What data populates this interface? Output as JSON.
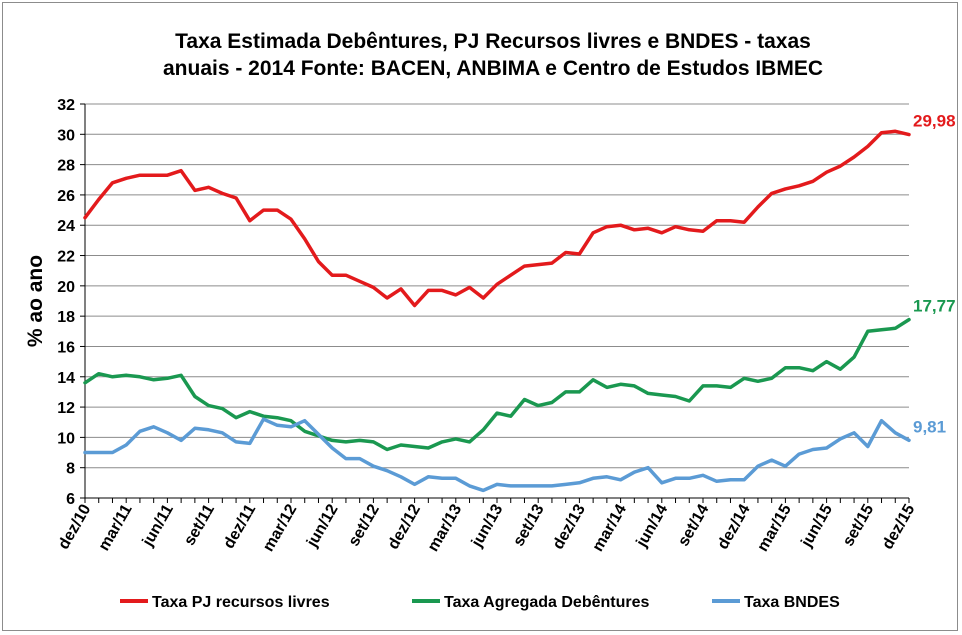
{
  "chart_data": {
    "type": "line",
    "title": [
      "Taxa Estimada Debêntures, PJ Recursos livres e BNDES - taxas",
      "anuais - 2014 Fonte: BACEN, ANBIMA e Centro de Estudos IBMEC"
    ],
    "ylabel": "% ao ano",
    "xlabel": "",
    "ylim": [
      6,
      32
    ],
    "yticks": [
      6,
      8,
      10,
      12,
      14,
      16,
      18,
      20,
      22,
      24,
      26,
      28,
      30,
      32
    ],
    "grid": "horizontal",
    "legend_position": "bottom",
    "x_tick_labels": [
      "dez/10",
      "mar/11",
      "jun/11",
      "set/11",
      "dez/11",
      "mar/12",
      "jun/12",
      "set/12",
      "dez/12",
      "mar/13",
      "jun/13",
      "set/13",
      "dez/13",
      "mar/14",
      "jun/14",
      "set/14",
      "dez/14",
      "mar/15",
      "jun/15",
      "set/15",
      "dez/15"
    ],
    "x": [
      "dez/10",
      "jan/11",
      "fev/11",
      "mar/11",
      "abr/11",
      "mai/11",
      "jun/11",
      "jul/11",
      "ago/11",
      "set/11",
      "out/11",
      "nov/11",
      "dez/11",
      "jan/12",
      "fev/12",
      "mar/12",
      "abr/12",
      "mai/12",
      "jun/12",
      "jul/12",
      "ago/12",
      "set/12",
      "out/12",
      "nov/12",
      "dez/12",
      "jan/13",
      "fev/13",
      "mar/13",
      "abr/13",
      "mai/13",
      "jun/13",
      "jul/13",
      "ago/13",
      "set/13",
      "out/13",
      "nov/13",
      "dez/13",
      "jan/14",
      "fev/14",
      "mar/14",
      "abr/14",
      "mai/14",
      "jun/14",
      "jul/14",
      "ago/14",
      "set/14",
      "out/14",
      "nov/14",
      "dez/14",
      "jan/15",
      "fev/15",
      "mar/15",
      "abr/15",
      "mai/15",
      "jun/15",
      "jul/15",
      "ago/15",
      "set/15",
      "out/15",
      "nov/15",
      "dez/15"
    ],
    "series": [
      {
        "name": "Taxa PJ recursos livres",
        "color": "#e31a1c",
        "end_label": "29,98",
        "values": [
          24.5,
          25.7,
          26.8,
          27.1,
          27.3,
          27.3,
          27.3,
          27.6,
          26.3,
          26.5,
          26.1,
          25.8,
          24.3,
          25.0,
          25.0,
          24.4,
          23.1,
          21.6,
          20.7,
          20.7,
          20.3,
          19.9,
          19.2,
          19.8,
          18.7,
          19.7,
          19.7,
          19.4,
          19.9,
          19.2,
          20.1,
          20.7,
          21.3,
          21.4,
          21.5,
          22.2,
          22.1,
          23.5,
          23.9,
          24.0,
          23.7,
          23.8,
          23.5,
          23.9,
          23.7,
          23.6,
          24.3,
          24.3,
          24.2,
          25.2,
          26.1,
          26.4,
          26.6,
          26.9,
          27.5,
          27.9,
          28.5,
          29.2,
          30.1,
          30.2,
          29.98
        ]
      },
      {
        "name": "Taxa Agregada Debêntures",
        "color": "#1a9850",
        "end_label": "17,77",
        "values": [
          13.6,
          14.2,
          14.0,
          14.1,
          14.0,
          13.8,
          13.9,
          14.1,
          12.7,
          12.1,
          11.9,
          11.3,
          11.7,
          11.4,
          11.3,
          11.1,
          10.4,
          10.1,
          9.8,
          9.7,
          9.8,
          9.7,
          9.2,
          9.5,
          9.4,
          9.3,
          9.7,
          9.9,
          9.7,
          10.5,
          11.6,
          11.4,
          12.5,
          12.1,
          12.3,
          13.0,
          13.0,
          13.8,
          13.3,
          13.5,
          13.4,
          12.9,
          12.8,
          12.7,
          12.4,
          13.4,
          13.4,
          13.3,
          13.9,
          13.7,
          13.9,
          14.6,
          14.6,
          14.4,
          15.0,
          14.5,
          15.3,
          17.0,
          17.1,
          17.2,
          17.77
        ]
      },
      {
        "name": "Taxa BNDES",
        "color": "#5b9bd5",
        "end_label": "9,81",
        "values": [
          9.0,
          9.0,
          9.0,
          9.5,
          10.4,
          10.7,
          10.3,
          9.8,
          10.6,
          10.5,
          10.3,
          9.7,
          9.6,
          11.2,
          10.8,
          10.7,
          11.1,
          10.2,
          9.3,
          8.6,
          8.6,
          8.1,
          7.8,
          7.4,
          6.9,
          7.4,
          7.3,
          7.3,
          6.8,
          6.5,
          6.9,
          6.8,
          6.8,
          6.8,
          6.8,
          6.9,
          7.0,
          7.3,
          7.4,
          7.2,
          7.7,
          8.0,
          7.0,
          7.3,
          7.3,
          7.5,
          7.1,
          7.2,
          7.2,
          8.1,
          8.5,
          8.1,
          8.9,
          9.2,
          9.3,
          9.9,
          10.3,
          9.4,
          11.1,
          10.3,
          9.81
        ]
      }
    ]
  }
}
